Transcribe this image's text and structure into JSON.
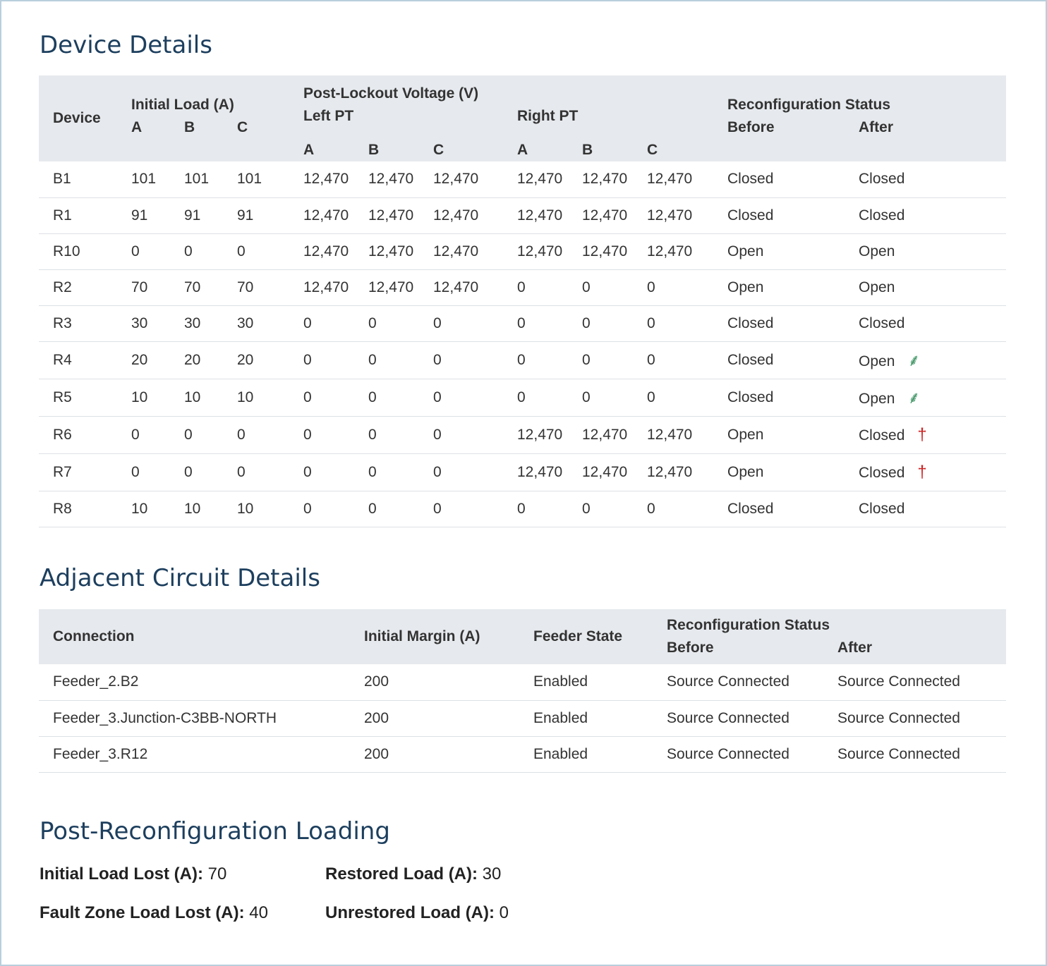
{
  "device_details": {
    "title": "Device Details",
    "headers": {
      "device": "Device",
      "initial_load": "Initial Load (A)",
      "post_lockout": "Post-Lockout Voltage (V)",
      "left_pt": "Left PT",
      "right_pt": "Right PT",
      "reconfig": "Reconfiguration Status",
      "before": "Before",
      "after": "After",
      "a": "A",
      "b": "B",
      "c": "C"
    },
    "rows": [
      {
        "device": "B1",
        "load": [
          "101",
          "101",
          "101"
        ],
        "left": [
          "12,470",
          "12,470",
          "12,470"
        ],
        "right": [
          "12,470",
          "12,470",
          "12,470"
        ],
        "before": "Closed",
        "after": "Closed",
        "icon": ""
      },
      {
        "device": "R1",
        "load": [
          "91",
          "91",
          "91"
        ],
        "left": [
          "12,470",
          "12,470",
          "12,470"
        ],
        "right": [
          "12,470",
          "12,470",
          "12,470"
        ],
        "before": "Closed",
        "after": "Closed",
        "icon": ""
      },
      {
        "device": "R10",
        "load": [
          "0",
          "0",
          "0"
        ],
        "left": [
          "12,470",
          "12,470",
          "12,470"
        ],
        "right": [
          "12,470",
          "12,470",
          "12,470"
        ],
        "before": "Open",
        "after": "Open",
        "icon": ""
      },
      {
        "device": "R2",
        "load": [
          "70",
          "70",
          "70"
        ],
        "left": [
          "12,470",
          "12,470",
          "12,470"
        ],
        "right": [
          "0",
          "0",
          "0"
        ],
        "before": "Open",
        "after": "Open",
        "icon": ""
      },
      {
        "device": "R3",
        "load": [
          "30",
          "30",
          "30"
        ],
        "left": [
          "0",
          "0",
          "0"
        ],
        "right": [
          "0",
          "0",
          "0"
        ],
        "before": "Closed",
        "after": "Closed",
        "icon": ""
      },
      {
        "device": "R4",
        "load": [
          "20",
          "20",
          "20"
        ],
        "left": [
          "0",
          "0",
          "0"
        ],
        "right": [
          "0",
          "0",
          "0"
        ],
        "before": "Closed",
        "after": "Open",
        "icon": "switch-opened-icon"
      },
      {
        "device": "R5",
        "load": [
          "10",
          "10",
          "10"
        ],
        "left": [
          "0",
          "0",
          "0"
        ],
        "right": [
          "0",
          "0",
          "0"
        ],
        "before": "Closed",
        "after": "Open",
        "icon": "switch-opened-icon"
      },
      {
        "device": "R6",
        "load": [
          "0",
          "0",
          "0"
        ],
        "left": [
          "0",
          "0",
          "0"
        ],
        "right": [
          "12,470",
          "12,470",
          "12,470"
        ],
        "before": "Open",
        "after": "Closed",
        "icon": "switch-closed-icon"
      },
      {
        "device": "R7",
        "load": [
          "0",
          "0",
          "0"
        ],
        "left": [
          "0",
          "0",
          "0"
        ],
        "right": [
          "12,470",
          "12,470",
          "12,470"
        ],
        "before": "Open",
        "after": "Closed",
        "icon": "switch-closed-icon"
      },
      {
        "device": "R8",
        "load": [
          "10",
          "10",
          "10"
        ],
        "left": [
          "0",
          "0",
          "0"
        ],
        "right": [
          "0",
          "0",
          "0"
        ],
        "before": "Closed",
        "after": "Closed",
        "icon": ""
      }
    ]
  },
  "adjacent_circuit": {
    "title": "Adjacent Circuit Details",
    "headers": {
      "connection": "Connection",
      "initial_margin": "Initial Margin (A)",
      "feeder_state": "Feeder State",
      "reconfig": "Reconfiguration Status",
      "before": "Before",
      "after": "After"
    },
    "rows": [
      {
        "connection": "Feeder_2.B2",
        "margin": "200",
        "state": "Enabled",
        "before": "Source Connected",
        "after": "Source Connected"
      },
      {
        "connection": "Feeder_3.Junction-C3BB-NORTH",
        "margin": "200",
        "state": "Enabled",
        "before": "Source Connected",
        "after": "Source Connected"
      },
      {
        "connection": "Feeder_3.R12",
        "margin": "200",
        "state": "Enabled",
        "before": "Source Connected",
        "after": "Source Connected"
      }
    ]
  },
  "post_reconfig": {
    "title": "Post-Reconfiguration Loading",
    "initial_load_lost_label": "Initial Load Lost (A):",
    "initial_load_lost": "70",
    "restored_load_label": "Restored Load (A):",
    "restored_load": "30",
    "fault_zone_label": "Fault Zone Load Lost (A):",
    "fault_zone": "40",
    "unrestored_label": "Unrestored Load (A):",
    "unrestored": "0"
  },
  "colors": {
    "heading": "#1d3f5e",
    "header_bg": "#e6e9ed",
    "opened_icon": "#2e8b57",
    "closed_icon": "#cc2222"
  }
}
